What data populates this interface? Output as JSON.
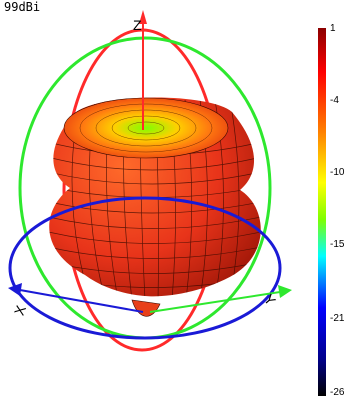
{
  "title": "99dBi",
  "axes": {
    "z": "Z",
    "x": "X",
    "y": "Y"
  },
  "colorbar": {
    "ticks": [
      "1",
      "-4",
      "-10",
      "-15",
      "-21",
      "-26"
    ],
    "colors": [
      "#8b0000",
      "#ff0000",
      "#ff7f00",
      "#ffff00",
      "#7fff00",
      "#00ffff",
      "#0000ff",
      "#00008b",
      "#000000"
    ]
  },
  "colors": {
    "circle_xz": "#ff2a2a",
    "circle_yz": "#2ee82e",
    "circle_xy": "#1a1ad6",
    "pattern_fill": "#f04a14",
    "pattern_grid": "#3a0a00"
  }
}
